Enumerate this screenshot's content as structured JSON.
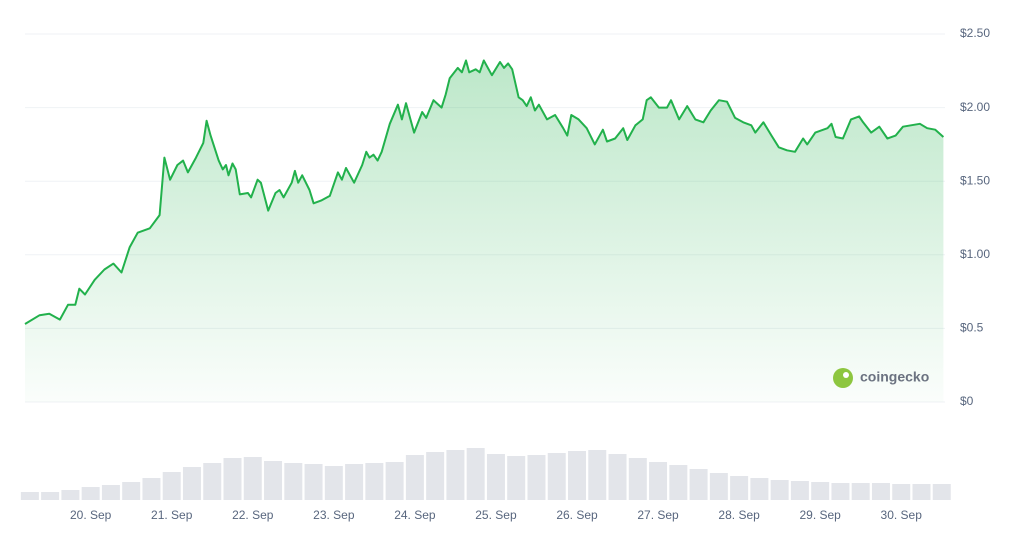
{
  "chart_data": [
    {
      "type": "area",
      "color": "#22b14c",
      "watermark": "coingecko",
      "xlim": [
        19.19,
        30.54
      ],
      "ylim": [
        0,
        2.5
      ],
      "grid": true,
      "xticks": [
        {
          "value": 20,
          "label": "20. Sep"
        },
        {
          "value": 21,
          "label": "21. Sep"
        },
        {
          "value": 22,
          "label": "22. Sep"
        },
        {
          "value": 23,
          "label": "23. Sep"
        },
        {
          "value": 24,
          "label": "24. Sep"
        },
        {
          "value": 25,
          "label": "25. Sep"
        },
        {
          "value": 26,
          "label": "26. Sep"
        },
        {
          "value": 27,
          "label": "27. Sep"
        },
        {
          "value": 28,
          "label": "28. Sep"
        },
        {
          "value": 29,
          "label": "29. Sep"
        },
        {
          "value": 30,
          "label": "30. Sep"
        }
      ],
      "yticks": [
        {
          "value": 0,
          "label": "$0"
        },
        {
          "value": 0.5,
          "label": "$0.5"
        },
        {
          "value": 1,
          "label": "$1.00"
        },
        {
          "value": 1.5,
          "label": "$1.50"
        },
        {
          "value": 2,
          "label": "$2.00"
        },
        {
          "value": 2.5,
          "label": "$2.50"
        }
      ],
      "x": [
        19.19,
        19.37,
        19.49,
        19.62,
        19.72,
        19.81,
        19.86,
        19.93,
        20.05,
        20.17,
        20.28,
        20.38,
        20.48,
        20.58,
        20.73,
        20.85,
        20.91,
        20.98,
        21.07,
        21.14,
        21.2,
        21.3,
        21.39,
        21.43,
        21.48,
        21.58,
        21.63,
        21.67,
        21.7,
        21.75,
        21.79,
        21.84,
        21.94,
        21.98,
        22.06,
        22.1,
        22.19,
        22.28,
        22.33,
        22.38,
        22.48,
        22.52,
        22.56,
        22.61,
        22.7,
        22.75,
        22.85,
        22.95,
        23.05,
        23.1,
        23.15,
        23.25,
        23.35,
        23.4,
        23.44,
        23.49,
        23.54,
        23.59,
        23.69,
        23.79,
        23.84,
        23.89,
        23.99,
        24.09,
        24.14,
        24.23,
        24.33,
        24.38,
        24.43,
        24.53,
        24.58,
        24.63,
        24.67,
        24.75,
        24.8,
        24.85,
        24.95,
        25.05,
        25.1,
        25.15,
        25.2,
        25.28,
        25.33,
        25.38,
        25.43,
        25.48,
        25.53,
        25.63,
        25.73,
        25.83,
        25.88,
        25.93,
        26.02,
        26.12,
        26.22,
        26.32,
        26.37,
        26.47,
        26.57,
        26.62,
        26.72,
        26.81,
        26.86,
        26.91,
        27.01,
        27.11,
        27.16,
        27.26,
        27.36,
        27.46,
        27.56,
        27.65,
        27.75,
        27.85,
        27.95,
        28.05,
        28.15,
        28.2,
        28.3,
        28.4,
        28.49,
        28.59,
        28.69,
        28.79,
        28.84,
        28.94,
        29.09,
        29.14,
        29.19,
        29.28,
        29.38,
        29.48,
        29.53,
        29.63,
        29.73,
        29.83,
        29.93,
        30.02,
        30.12,
        30.23,
        30.32,
        30.42,
        30.52
      ],
      "values": [
        0.53,
        0.59,
        0.6,
        0.56,
        0.66,
        0.66,
        0.77,
        0.73,
        0.83,
        0.9,
        0.94,
        0.88,
        1.05,
        1.15,
        1.18,
        1.27,
        1.66,
        1.51,
        1.61,
        1.64,
        1.56,
        1.66,
        1.76,
        1.91,
        1.81,
        1.64,
        1.58,
        1.61,
        1.54,
        1.62,
        1.58,
        1.41,
        1.42,
        1.39,
        1.51,
        1.49,
        1.3,
        1.42,
        1.44,
        1.39,
        1.49,
        1.57,
        1.49,
        1.54,
        1.44,
        1.35,
        1.37,
        1.4,
        1.56,
        1.51,
        1.59,
        1.49,
        1.61,
        1.7,
        1.66,
        1.68,
        1.64,
        1.7,
        1.89,
        2.02,
        1.92,
        2.03,
        1.83,
        1.97,
        1.93,
        2.05,
        2.0,
        2.09,
        2.2,
        2.27,
        2.24,
        2.32,
        2.24,
        2.26,
        2.24,
        2.32,
        2.22,
        2.31,
        2.27,
        2.3,
        2.26,
        2.07,
        2.05,
        2.01,
        2.07,
        1.98,
        2.02,
        1.92,
        1.95,
        1.86,
        1.81,
        1.95,
        1.92,
        1.86,
        1.75,
        1.85,
        1.77,
        1.79,
        1.86,
        1.78,
        1.88,
        1.92,
        2.05,
        2.07,
        2.0,
        2.0,
        2.05,
        1.92,
        2.01,
        1.92,
        1.9,
        1.98,
        2.05,
        2.04,
        1.93,
        1.9,
        1.88,
        1.83,
        1.9,
        1.81,
        1.73,
        1.71,
        1.7,
        1.79,
        1.75,
        1.83,
        1.86,
        1.89,
        1.8,
        1.79,
        1.92,
        1.94,
        1.9,
        1.83,
        1.87,
        1.79,
        1.81,
        1.87,
        1.88,
        1.89,
        1.86,
        1.85,
        1.8
      ]
    },
    {
      "type": "bar",
      "color": "#e3e5ea",
      "xlim": [
        19.19,
        30.54
      ],
      "ylim": [
        0,
        100
      ],
      "x": [
        19.25,
        19.5,
        19.75,
        20,
        20.25,
        20.5,
        20.75,
        21,
        21.25,
        21.5,
        21.75,
        22,
        22.25,
        22.5,
        22.75,
        23,
        23.25,
        23.5,
        23.75,
        24,
        24.25,
        24.5,
        24.75,
        25,
        25.25,
        25.5,
        25.75,
        26,
        26.25,
        26.5,
        26.75,
        27,
        27.25,
        27.5,
        27.75,
        28,
        28.25,
        28.5,
        28.75,
        29,
        29.25,
        29.5,
        29.75,
        30,
        30.25,
        30.5
      ],
      "values": [
        8,
        8,
        10,
        13,
        15,
        18,
        22,
        28,
        33,
        37,
        42,
        43,
        39,
        37,
        36,
        34,
        36,
        37,
        38,
        45,
        48,
        50,
        52,
        46,
        44,
        45,
        47,
        49,
        50,
        46,
        42,
        38,
        35,
        31,
        27,
        24,
        22,
        20,
        19,
        18,
        17,
        17,
        17,
        16,
        16,
        16
      ]
    }
  ]
}
